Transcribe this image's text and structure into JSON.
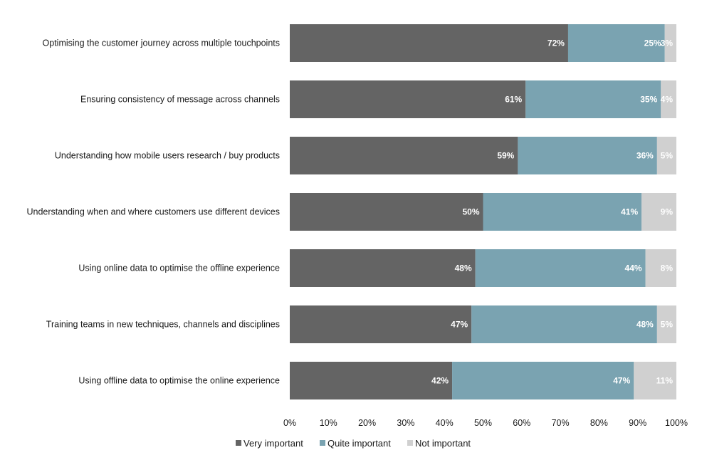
{
  "chart_data": {
    "type": "bar",
    "orientation": "horizontal",
    "stacked": "percent",
    "categories": [
      "Optimising the customer journey across multiple touchpoints",
      "Ensuring consistency of message across channels",
      "Understanding how mobile users research / buy products",
      "Understanding when and where customers use different devices",
      "Using online data to optimise the offline experience",
      "Training teams in new techniques, channels and disciplines",
      "Using offline data to optimise the online experience"
    ],
    "series": [
      {
        "name": "Very important",
        "color": "#646464",
        "values": [
          72,
          61,
          59,
          50,
          48,
          47,
          42
        ],
        "labels": [
          "72%",
          "61%",
          "59%",
          "50%",
          "48%",
          "47%",
          "42%"
        ]
      },
      {
        "name": "Quite important",
        "color": "#7aa3b1",
        "values": [
          25,
          35,
          36,
          41,
          44,
          48,
          47
        ],
        "labels": [
          "25%",
          "35%",
          "36%",
          "41%",
          "44%",
          "48%",
          "47%"
        ]
      },
      {
        "name": "Not important",
        "color": "#d0d0d0",
        "values": [
          3,
          4,
          5,
          9,
          8,
          5,
          11
        ],
        "labels": [
          "3%",
          "4%",
          "5%",
          "9%",
          "8%",
          "5%",
          "11%"
        ]
      }
    ],
    "xlim": [
      0,
      100
    ],
    "xticks": [
      "0%",
      "10%",
      "20%",
      "30%",
      "40%",
      "50%",
      "60%",
      "70%",
      "80%",
      "90%",
      "100%"
    ],
    "grid": false,
    "legend": "bottom"
  }
}
